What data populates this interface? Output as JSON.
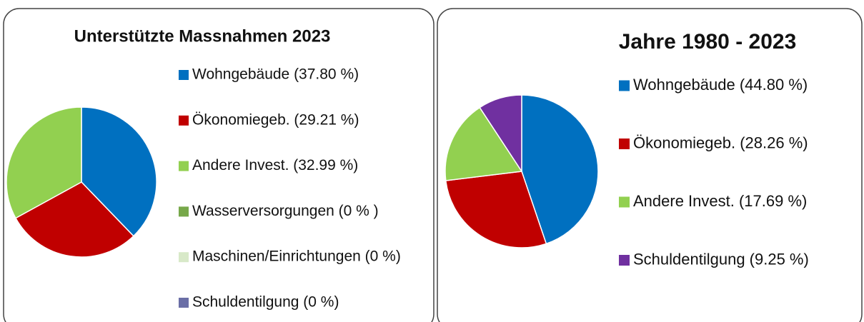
{
  "chart_data": [
    {
      "type": "pie",
      "title": "Unterstützte Massnahmen 2023",
      "categories": [
        "Wohngebäude (37.80 %)",
        "Ökonomiegeb. (29.21 %)",
        "Andere Invest. (32.99 %)",
        "Wasserversorgungen (0 % )",
        "Maschinen/Einrichtungen (0 %)",
        "Schuldentilgung (0 %)"
      ],
      "values": [
        37.8,
        29.21,
        32.99,
        0,
        0,
        0
      ],
      "colors": [
        "#0070c0",
        "#c00000",
        "#92d050",
        "#77a84a",
        "#d8e9c8",
        "#6a6ea6"
      ]
    },
    {
      "type": "pie",
      "title": "Jahre 1980 - 2023",
      "categories": [
        "Wohngebäude (44.80 %)",
        "Ökonomiegeb. (28.26 %)",
        "Andere Invest. (17.69 %)",
        "Schuldentilgung (9.25 %)"
      ],
      "values": [
        44.8,
        28.26,
        17.69,
        9.25
      ],
      "colors": [
        "#0070c0",
        "#c00000",
        "#92d050",
        "#7030a0"
      ]
    }
  ]
}
